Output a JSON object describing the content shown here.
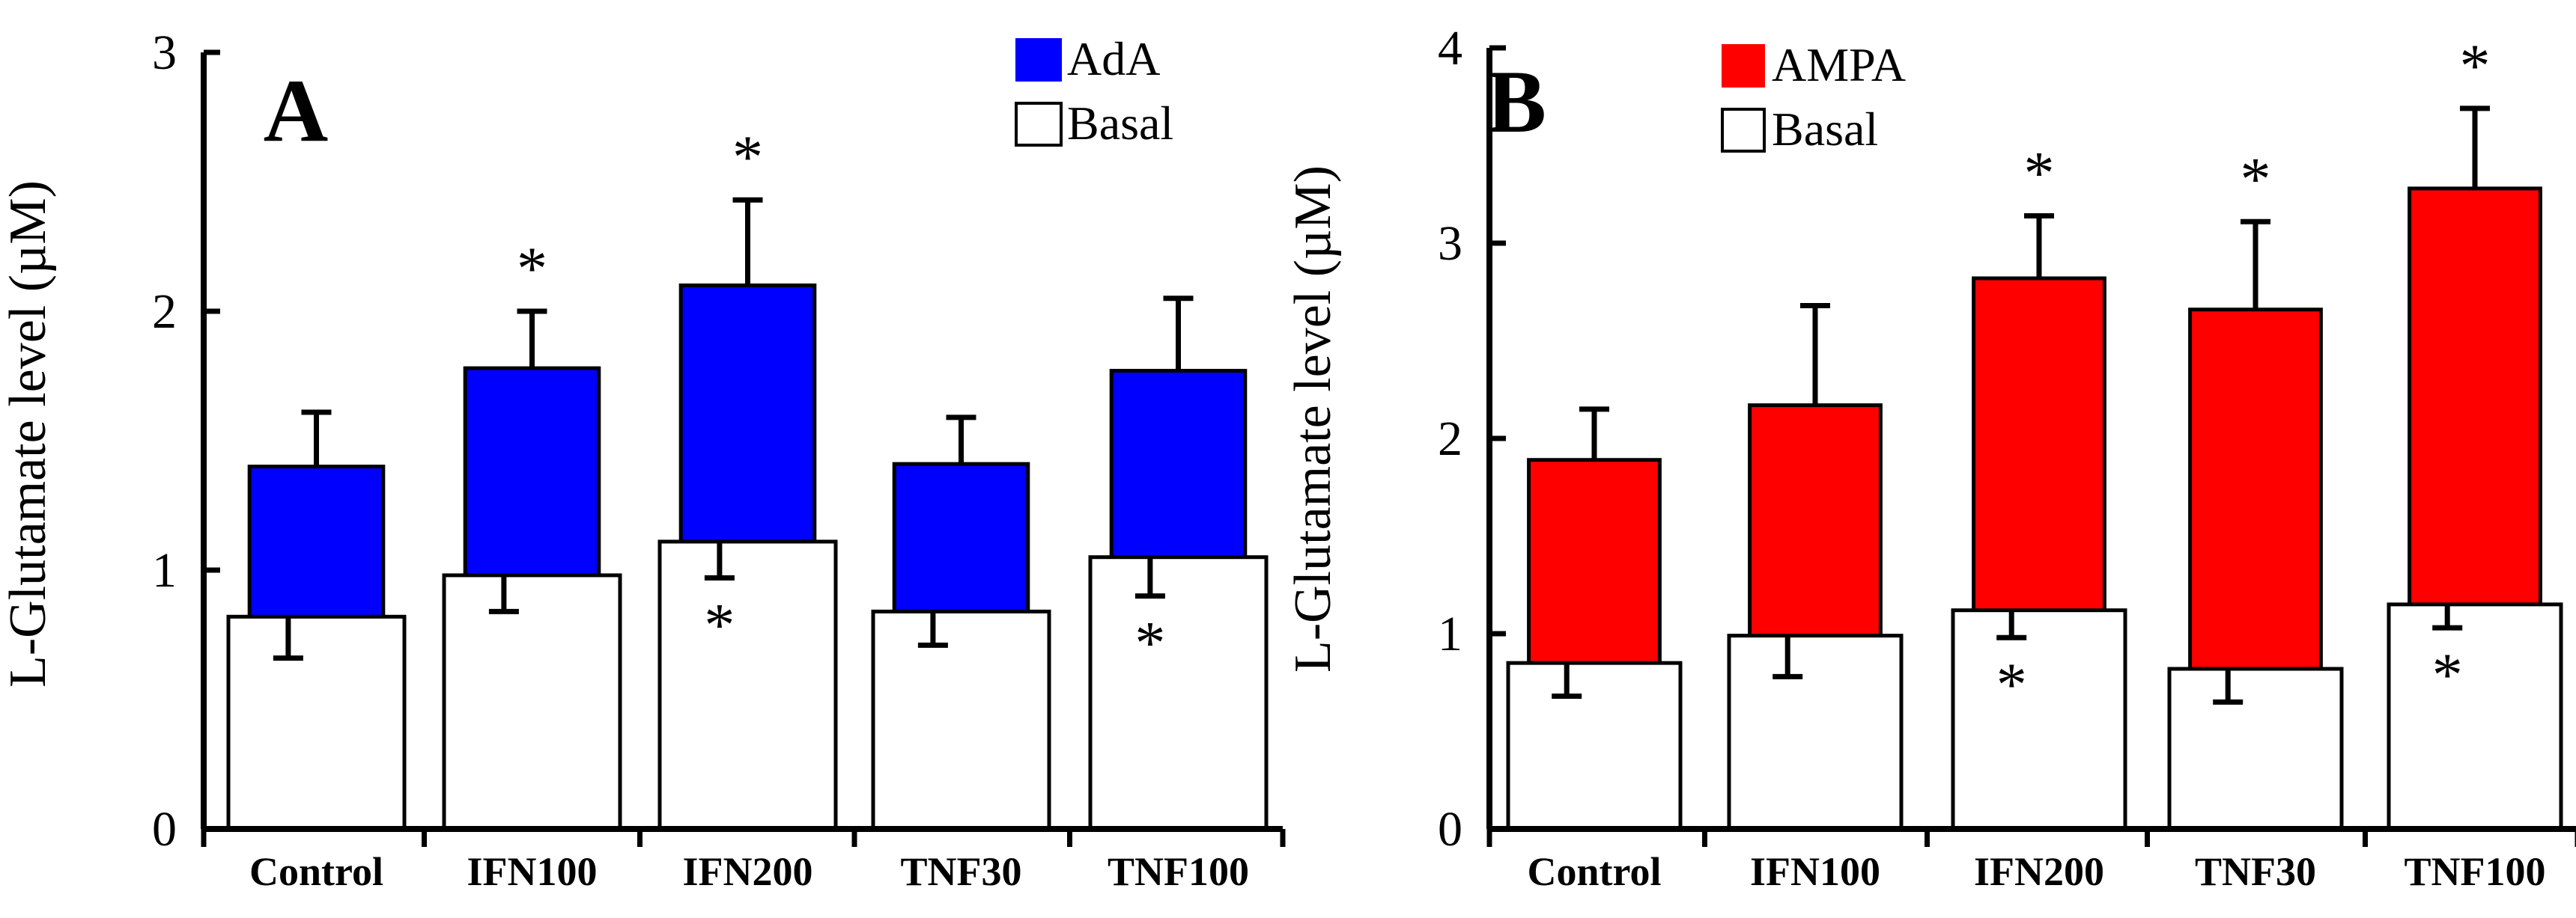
{
  "chart_data": [
    {
      "type": "bar",
      "panel_label": "A",
      "ylabel": "L-Glutamate level (µM)",
      "ylim": [
        0,
        3
      ],
      "yticks": [
        "0",
        "1",
        "2",
        "3"
      ],
      "categories": [
        "Control",
        "IFN100",
        "IFN200",
        "TNF30",
        "TNF100"
      ],
      "series": [
        {
          "name": "AdA",
          "color": "#0000ff",
          "values": [
            1.4,
            1.78,
            2.1,
            1.41,
            1.77
          ],
          "error": [
            0.21,
            0.22,
            0.33,
            0.18,
            0.28
          ],
          "significant": [
            false,
            true,
            true,
            false,
            false
          ]
        },
        {
          "name": "Basal",
          "color": "#ffffff",
          "values": [
            0.82,
            0.98,
            1.11,
            0.84,
            1.05
          ],
          "error": [
            0.16,
            0.14,
            0.14,
            0.13,
            0.15
          ],
          "significant": [
            false,
            false,
            true,
            false,
            true
          ]
        }
      ],
      "significance_symbol": "*",
      "legend_position": "top-right"
    },
    {
      "type": "bar",
      "panel_label": "B",
      "ylabel": "L-Glutamate level (µM)",
      "ylim": [
        0,
        4
      ],
      "yticks": [
        "0",
        "1",
        "2",
        "3",
        "4"
      ],
      "categories": [
        "Control",
        "IFN100",
        "IFN200",
        "TNF30",
        "TNF100"
      ],
      "series": [
        {
          "name": "AMPA",
          "color": "#ff0000",
          "values": [
            1.89,
            2.17,
            2.82,
            2.66,
            3.28
          ],
          "error": [
            0.26,
            0.51,
            0.32,
            0.45,
            0.41
          ],
          "significant": [
            false,
            false,
            true,
            true,
            true
          ]
        },
        {
          "name": "Basal",
          "color": "#ffffff",
          "values": [
            0.85,
            0.99,
            1.12,
            0.82,
            1.15
          ],
          "error": [
            0.17,
            0.21,
            0.14,
            0.17,
            0.12
          ],
          "significant": [
            false,
            false,
            true,
            false,
            true
          ]
        }
      ],
      "significance_symbol": "*",
      "legend_position": "top-left"
    }
  ]
}
